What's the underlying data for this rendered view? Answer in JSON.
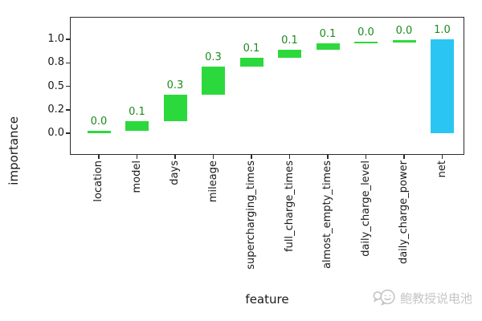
{
  "chart_data": {
    "type": "bar",
    "subtype": "waterfall",
    "title": "",
    "xlabel": "feature",
    "ylabel": "importance",
    "categories": [
      "location",
      "model",
      "days",
      "mileage",
      "supercharging_times",
      "full_charge_times",
      "almost_empty_times",
      "daily_charge_level",
      "daily_charge_power",
      "net"
    ],
    "values": [
      0.0,
      0.1,
      0.3,
      0.3,
      0.1,
      0.1,
      0.1,
      0.0,
      0.0,
      1.0
    ],
    "steps": [
      {
        "category": "location",
        "label": "0.0",
        "start": 0.0,
        "end": 0.025,
        "color": "green"
      },
      {
        "category": "model",
        "label": "0.1",
        "start": 0.025,
        "end": 0.125,
        "color": "green"
      },
      {
        "category": "days",
        "label": "0.3",
        "start": 0.125,
        "end": 0.41,
        "color": "green"
      },
      {
        "category": "mileage",
        "label": "0.3",
        "start": 0.41,
        "end": 0.71,
        "color": "green"
      },
      {
        "category": "supercharging_times",
        "label": "0.1",
        "start": 0.71,
        "end": 0.8,
        "color": "green"
      },
      {
        "category": "full_charge_times",
        "label": "0.1",
        "start": 0.8,
        "end": 0.89,
        "color": "green"
      },
      {
        "category": "almost_empty_times",
        "label": "0.1",
        "start": 0.89,
        "end": 0.955,
        "color": "green"
      },
      {
        "category": "daily_charge_level",
        "label": "0.0",
        "start": 0.955,
        "end": 0.975,
        "color": "green"
      },
      {
        "category": "daily_charge_power",
        "label": "0.0",
        "start": 0.975,
        "end": 0.99,
        "color": "green"
      },
      {
        "category": "net",
        "label": "1.0",
        "start": 0.0,
        "end": 1.0,
        "color": "blue"
      }
    ],
    "yticks": [
      {
        "label": "1.0",
        "value": 1.0
      },
      {
        "label": "0.8",
        "value": 0.75
      },
      {
        "label": "0.5",
        "value": 0.5
      },
      {
        "label": "0.2",
        "value": 0.25
      },
      {
        "label": "0.0",
        "value": 0.0
      }
    ],
    "ylim": [
      -0.23,
      1.24
    ],
    "grid": false,
    "legend": "none",
    "zero_line": {
      "y": 0,
      "style": "dashed",
      "color": "#6e6e6e"
    },
    "colors": {
      "step_bar": "#2CD93C",
      "net_bar": "#2BC5F3",
      "value_label": "#1E8A1E",
      "axis": "#2b2b2b",
      "tick_text": "#1a1a1a"
    }
  },
  "watermark": {
    "icon": "chat-face-icon",
    "text": "鲍教授说电池",
    "color": "#c5c5c5"
  }
}
